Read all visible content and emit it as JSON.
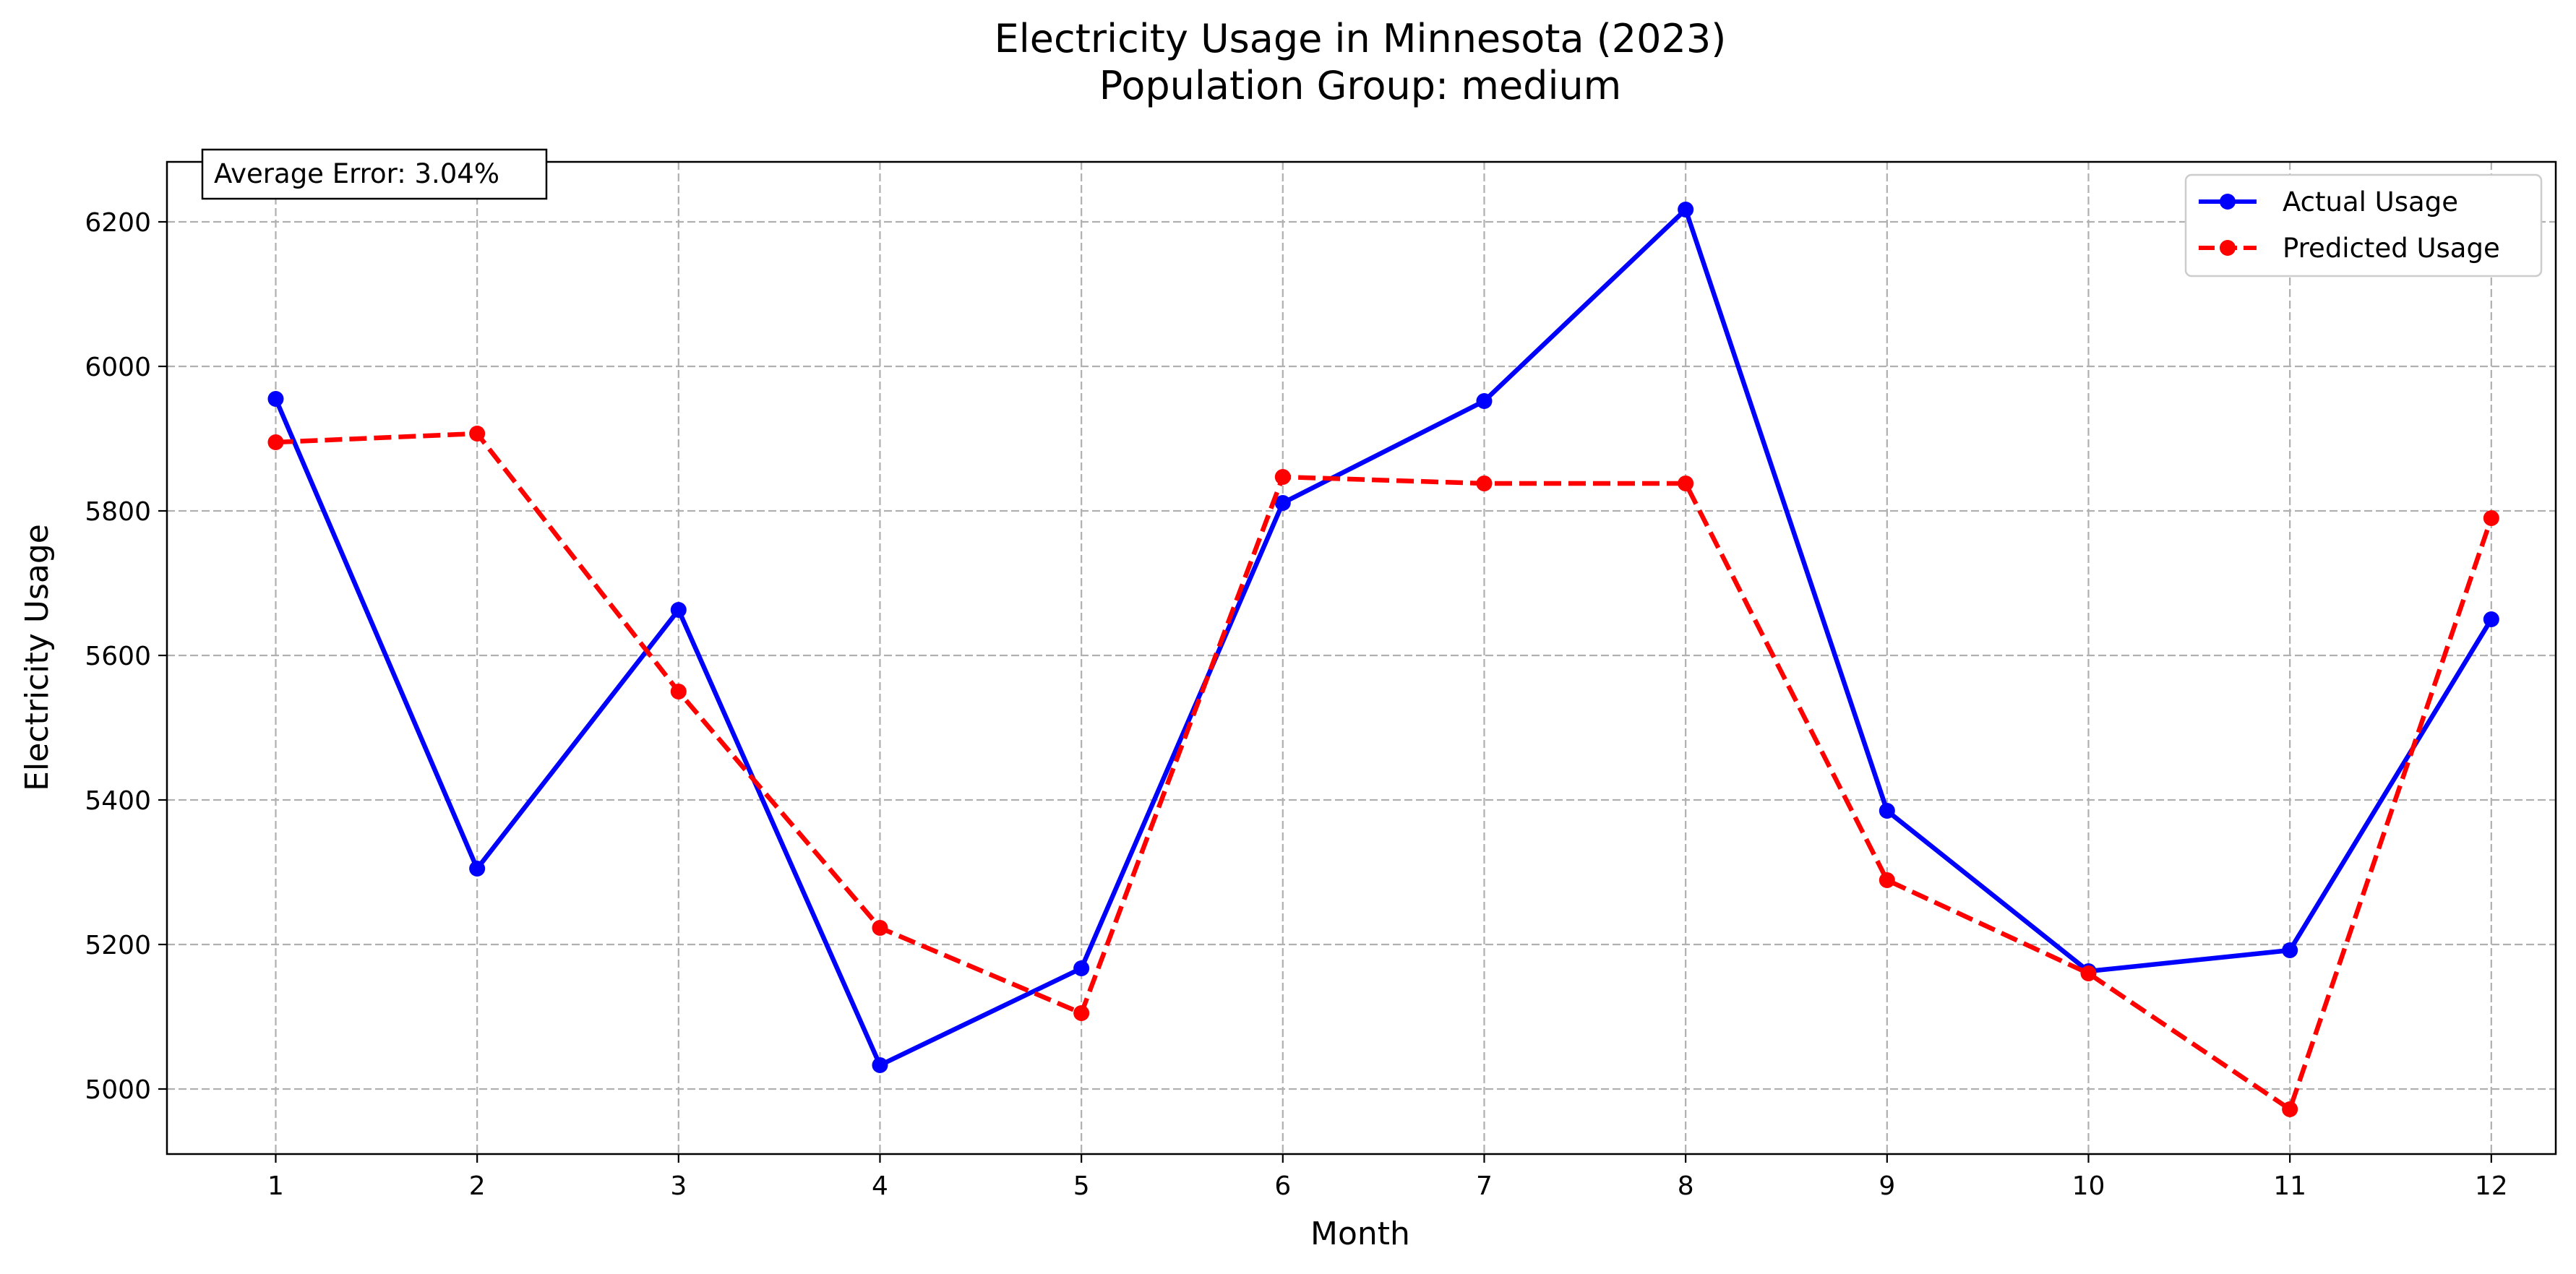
{
  "chart_data": {
    "type": "line",
    "title": "Electricity Usage in Minnesota (2023)",
    "subtitle": "Population Group: medium",
    "xlabel": "Month",
    "ylabel": "Electricity Usage",
    "x": [
      1,
      2,
      3,
      4,
      5,
      6,
      7,
      8,
      9,
      10,
      11,
      12
    ],
    "xlim": [
      0.46,
      12.32
    ],
    "ylim": [
      4910,
      6283
    ],
    "yticks": [
      5000,
      5200,
      5400,
      5600,
      5800,
      6000,
      6200
    ],
    "grid": true,
    "legend_position": "top-right",
    "series": [
      {
        "name": "Actual Usage",
        "color": "#0000ff",
        "linestyle": "solid",
        "marker": "circle",
        "values": [
          5955,
          5305,
          5663,
          5033,
          5167,
          5811,
          5952,
          6217,
          5385,
          5163,
          5192,
          5650
        ]
      },
      {
        "name": "Predicted Usage",
        "color": "#ff0000",
        "linestyle": "dashed",
        "marker": "circle",
        "values": [
          5895,
          5907,
          5550,
          5223,
          5105,
          5847,
          5838,
          5838,
          5289,
          5160,
          4972,
          5790
        ]
      }
    ],
    "annotation": "Average Error: 3.04%"
  }
}
